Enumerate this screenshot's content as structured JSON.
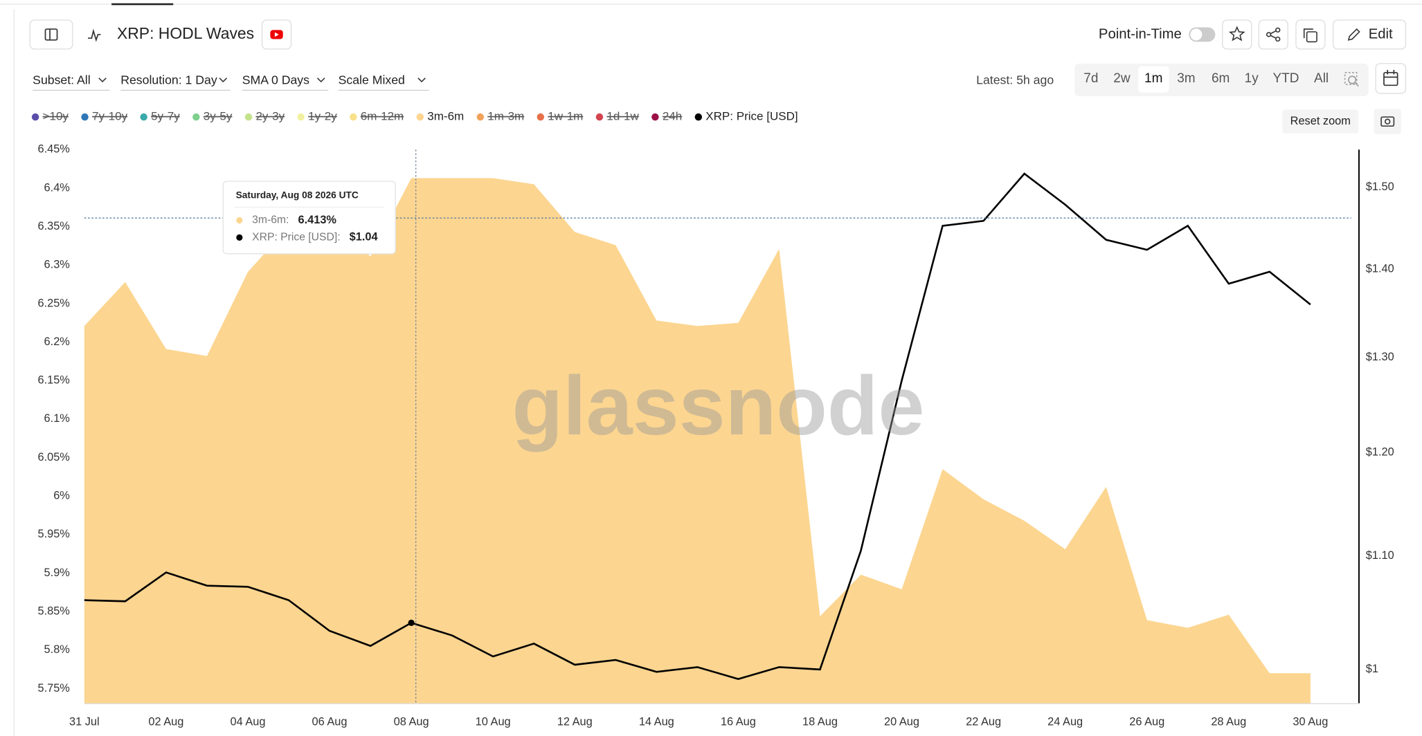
{
  "toolbar": {
    "title": "XRP: HODL Waves",
    "point_in_time": "Point-in-Time",
    "edit": "Edit",
    "filters": [
      "Subset: All",
      "Resolution: 1 Day",
      "SMA 0 Days",
      "Scale Mixed"
    ],
    "latest": "Latest: 5h ago",
    "ranges": [
      "7d",
      "2w",
      "1m",
      "3m",
      "6m",
      "1y",
      "YTD",
      "All"
    ],
    "active_range": 2,
    "reset_zoom": "Reset zoom",
    "watermark": "glassnode"
  },
  "chart_data": {
    "type": "area",
    "legend": "top-left",
    "categories": [
      "31 Jul",
      null,
      "02 Aug",
      null,
      "04 Aug",
      null,
      "06 Aug",
      null,
      "08 Aug",
      null,
      "10 Aug",
      null,
      "12 Aug",
      null,
      "14 Aug",
      null,
      "16 Aug",
      null,
      "18 Aug",
      null,
      "20 Aug",
      null,
      "22 Aug",
      null,
      "24 Aug",
      null,
      "26 Aug",
      null,
      "28 Aug",
      null,
      "30 Aug"
    ],
    "ylim": [
      5.731,
      6.45
    ],
    "yticks": [
      {
        "value": 5.75,
        "label": "5.75%"
      },
      {
        "value": 5.8,
        "label": "5.8%"
      },
      {
        "value": 5.85,
        "label": "5.85%"
      },
      {
        "value": 5.9,
        "label": "5.9%"
      },
      {
        "value": 5.95,
        "label": "5.95%"
      },
      {
        "value": 6,
        "label": "6%"
      },
      {
        "value": 6.05,
        "label": "6.05%"
      },
      {
        "value": 6.1,
        "label": "6.1%"
      },
      {
        "value": 6.15,
        "label": "6.15%"
      },
      {
        "value": 6.2,
        "label": "6.2%"
      },
      {
        "value": 6.25,
        "label": "6.25%"
      },
      {
        "value": 6.3,
        "label": "6.3%"
      },
      {
        "value": 6.35,
        "label": "6.35%"
      },
      {
        "value": 6.4,
        "label": "6.4%"
      },
      {
        "value": 6.45,
        "label": "6.45%"
      }
    ],
    "y2lim": [
      0.972,
      1.548
    ],
    "y2log": true,
    "y2ticks": [
      {
        "value": 1,
        "label": "$1"
      },
      {
        "value": 1.1,
        "label": "$1.10"
      },
      {
        "value": 1.2,
        "label": "$1.20"
      },
      {
        "value": 1.3,
        "label": "$1.30"
      },
      {
        "value": 1.4,
        "label": "$1.40"
      },
      {
        "value": 1.5,
        "label": "$1.50"
      }
    ],
    "series": [
      {
        "name": ">10y",
        "color": "#5b4ea8",
        "hidden": true
      },
      {
        "name": "7y-10y",
        "color": "#2e78b7",
        "hidden": true
      },
      {
        "name": "5y-7y",
        "color": "#3aa9a9",
        "hidden": true
      },
      {
        "name": "3y-5y",
        "color": "#7fd08e",
        "hidden": true
      },
      {
        "name": "2y-3y",
        "color": "#c3e38a",
        "hidden": true
      },
      {
        "name": "1y-2y",
        "color": "#f2f0a0",
        "hidden": true
      },
      {
        "name": "6m-12m",
        "color": "#f8e08a",
        "hidden": true
      },
      {
        "name": "3m-6m",
        "color": "#fcd590",
        "values": [
          6.221,
          6.278,
          6.191,
          6.182,
          6.291,
          6.35,
          6.374,
          6.311,
          6.413,
          6.413,
          6.413,
          6.405,
          6.343,
          6.326,
          6.228,
          6.221,
          6.225,
          6.321,
          5.844,
          5.898,
          5.879,
          6.035,
          5.996,
          5.968,
          5.931,
          6.012,
          5.839,
          5.829,
          5.846,
          5.77,
          5.77
        ]
      },
      {
        "name": "1m-3m",
        "color": "#f2a25a",
        "hidden": true
      },
      {
        "name": "1w-1m",
        "color": "#e8704a",
        "hidden": true
      },
      {
        "name": "1d-1w",
        "color": "#d4444f",
        "hidden": true
      },
      {
        "name": "24h",
        "color": "#9c1048",
        "hidden": true
      },
      {
        "name": "XRP: Price [USD]",
        "color": "#000000",
        "axis": "y2",
        "values": [
          1.06,
          1.059,
          1.085,
          1.073,
          1.072,
          1.06,
          1.033,
          1.02,
          1.04,
          1.029,
          1.011,
          1.022,
          1.004,
          1.008,
          0.998,
          1.002,
          0.992,
          1.002,
          1.0,
          1.105,
          1.275,
          1.452,
          1.458,
          1.517,
          1.478,
          1.435,
          1.423,
          1.452,
          1.383,
          1.397,
          1.359
        ]
      }
    ],
    "tooltip": {
      "title": "Saturday, Aug 08 2026 UTC",
      "index": 8,
      "rows": [
        {
          "label": "3m-6m:",
          "value_label": "6.413%"
        },
        {
          "label": "XRP: Price [USD]:",
          "value_label": "$1.04"
        }
      ]
    }
  }
}
